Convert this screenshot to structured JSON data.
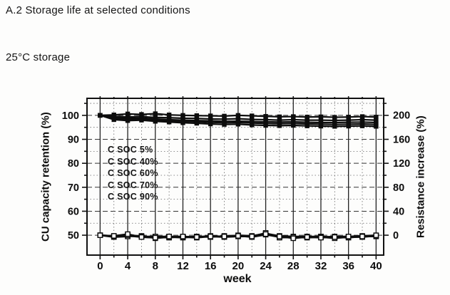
{
  "page": {
    "section_heading": "A.2 Storage life at selected conditions",
    "condition_label": "25°C storage"
  },
  "chart_data": {
    "type": "line",
    "title": "",
    "xlabel": "week",
    "ylabel_left": "CU capacity retention (%)",
    "ylabel_right": "Resistance increase (%)",
    "legend": [
      "C SOC 5%",
      "C SOC 40%",
      "C SOC 60%",
      "C SOC 70%",
      "C SOC 90%"
    ],
    "legend_position": "inside-left",
    "grid": "on",
    "colors": {
      "line": "#0d0d0d",
      "open_marker_fill": "#ffffff",
      "frame": "#111111"
    },
    "axes": {
      "x": {
        "label": "week",
        "ticks": [
          0,
          4,
          8,
          12,
          16,
          20,
          24,
          28,
          32,
          36,
          40
        ],
        "minor_ticks": [
          2,
          6,
          10,
          14,
          18,
          22,
          26,
          30,
          34,
          38
        ],
        "range": [
          -1.9,
          41.1
        ]
      },
      "left": {
        "label": "CU capacity retention (%)",
        "ticks": [
          50,
          60,
          70,
          80,
          90,
          100
        ],
        "minor_ticks": [
          55,
          65,
          75,
          85,
          95,
          105
        ],
        "range": [
          41.7,
          107.1
        ]
      },
      "right": {
        "label": "Resistance increase (%)",
        "ticks": [
          0,
          40,
          80,
          120,
          160,
          200
        ],
        "minor_ticks": [
          20,
          60,
          100,
          140,
          180,
          220
        ],
        "range": [
          -33,
          228
        ]
      }
    },
    "x_weeks": [
      0,
      2,
      4,
      6,
      8,
      10,
      12,
      14,
      16,
      18,
      20,
      22,
      24,
      26,
      28,
      30,
      32,
      34,
      36,
      38,
      40
    ],
    "series_capacity": [
      {
        "name": "C SOC 5%",
        "axis": "left",
        "marker": "filled-square",
        "values": [
          100,
          100.2,
          100.6,
          100.4,
          100.7,
          100.2,
          100.0,
          99.9,
          99.8,
          99.7,
          100.0,
          99.8,
          99.6,
          99.4,
          99.5,
          99.3,
          99.4,
          99.2,
          99.3,
          99.5,
          99.3
        ]
      },
      {
        "name": "C SOC 40%",
        "axis": "left",
        "marker": "filled-square",
        "values": [
          100,
          99.6,
          99.3,
          99.5,
          99.1,
          99.0,
          98.8,
          98.7,
          98.5,
          98.4,
          98.6,
          98.3,
          98.2,
          98.0,
          98.2,
          98.0,
          98.0,
          97.9,
          98.0,
          98.2,
          98.0
        ]
      },
      {
        "name": "C SOC 60%",
        "axis": "left",
        "marker": "filled-square",
        "values": [
          100,
          99.1,
          98.7,
          98.9,
          98.5,
          98.2,
          98.0,
          97.8,
          97.7,
          97.5,
          97.6,
          97.4,
          97.3,
          97.2,
          97.3,
          97.1,
          97.0,
          97.0,
          97.1,
          97.2,
          97.0
        ]
      },
      {
        "name": "C SOC 70%",
        "axis": "left",
        "marker": "filled-square",
        "values": [
          100,
          98.7,
          98.3,
          98.5,
          98.0,
          97.7,
          97.5,
          97.3,
          97.1,
          96.9,
          97.0,
          96.8,
          96.6,
          96.5,
          96.6,
          96.4,
          96.3,
          96.2,
          96.3,
          96.4,
          96.2
        ]
      },
      {
        "name": "C SOC 90%",
        "axis": "left",
        "marker": "filled-square",
        "values": [
          100,
          98.2,
          97.8,
          98.0,
          97.5,
          97.2,
          96.9,
          96.7,
          96.4,
          96.2,
          96.3,
          96.0,
          95.8,
          95.7,
          95.8,
          95.6,
          95.5,
          95.4,
          95.5,
          95.6,
          95.4
        ]
      }
    ],
    "series_resistance": [
      {
        "name": "C SOC 5%",
        "axis": "right",
        "marker": "open-square",
        "values": [
          0,
          -2,
          -1,
          -3,
          -4,
          -3,
          -3,
          -2,
          -2,
          -2,
          -1,
          -2,
          2,
          -2,
          -3,
          -3,
          -2,
          -4,
          -3,
          -2,
          -1
        ]
      },
      {
        "name": "C SOC 40%",
        "axis": "right",
        "marker": "open-square",
        "values": [
          0,
          -1,
          1,
          -2,
          -3,
          -4,
          -2,
          -3,
          -1,
          -2,
          0,
          -1,
          3,
          -1,
          -2,
          -2,
          -3,
          -2,
          -2,
          -1,
          0
        ]
      },
      {
        "name": "C SOC 60%",
        "axis": "right",
        "marker": "open-square",
        "values": [
          0,
          -3,
          -2,
          -1,
          -5,
          -3,
          -4,
          -2,
          -3,
          -1,
          -1,
          -3,
          1,
          -3,
          -4,
          -2,
          -2,
          -3,
          -4,
          -2,
          -2
        ]
      },
      {
        "name": "C SOC 70%",
        "axis": "right",
        "marker": "open-square",
        "values": [
          0,
          -2,
          0,
          -2,
          -2,
          -2,
          -3,
          -4,
          -2,
          -3,
          -2,
          -2,
          4,
          -4,
          -3,
          -4,
          -3,
          -5,
          -3,
          -3,
          -1
        ]
      },
      {
        "name": "C SOC 90%",
        "axis": "right",
        "marker": "open-square",
        "values": [
          0,
          -1,
          2,
          -3,
          -4,
          -2,
          -2,
          -3,
          -2,
          -2,
          -1,
          -2,
          2,
          -2,
          -5,
          -3,
          -4,
          -3,
          -2,
          -2,
          0
        ]
      }
    ]
  }
}
